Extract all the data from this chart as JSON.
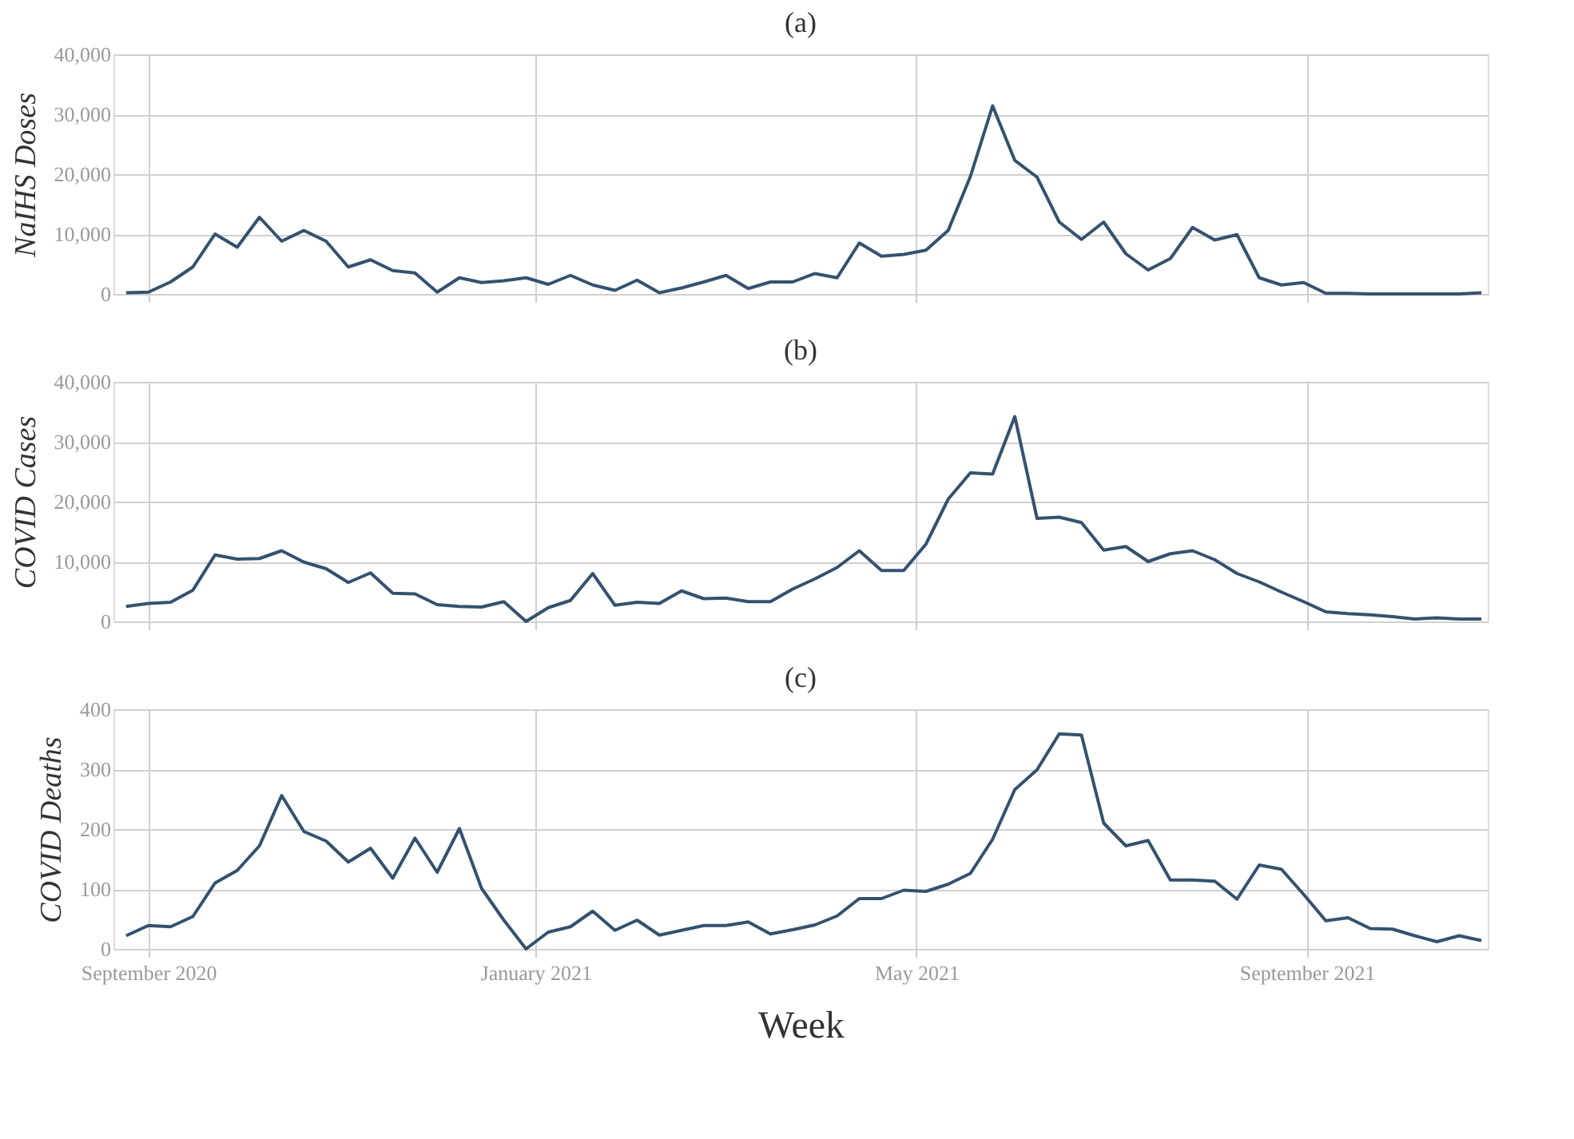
{
  "chart_data": [
    {
      "type": "line",
      "title": "(a)",
      "ylabel": "NaIHS Doses",
      "tick_labels": "y",
      "grid": true,
      "marker": "none",
      "line_style": "solid",
      "x": [
        "2020-08-25",
        "2020-09-01",
        "2020-09-08",
        "2020-09-15",
        "2020-09-22",
        "2020-09-29",
        "2020-10-06",
        "2020-10-13",
        "2020-10-20",
        "2020-10-27",
        "2020-11-03",
        "2020-11-10",
        "2020-11-17",
        "2020-11-24",
        "2020-12-01",
        "2020-12-08",
        "2020-12-15",
        "2020-12-22",
        "2020-12-29",
        "2021-01-05",
        "2021-01-12",
        "2021-01-19",
        "2021-01-26",
        "2021-02-02",
        "2021-02-09",
        "2021-02-16",
        "2021-02-23",
        "2021-03-02",
        "2021-03-09",
        "2021-03-16",
        "2021-03-23",
        "2021-03-30",
        "2021-04-06",
        "2021-04-13",
        "2021-04-20",
        "2021-04-27",
        "2021-05-04",
        "2021-05-11",
        "2021-05-18",
        "2021-05-25",
        "2021-06-01",
        "2021-06-08",
        "2021-06-15",
        "2021-06-22",
        "2021-06-29",
        "2021-07-06",
        "2021-07-13",
        "2021-07-20",
        "2021-07-27",
        "2021-08-03",
        "2021-08-10",
        "2021-08-17",
        "2021-08-24",
        "2021-08-31",
        "2021-09-07",
        "2021-09-14",
        "2021-09-21",
        "2021-09-28",
        "2021-10-05",
        "2021-10-12",
        "2021-10-19",
        "2021-10-26"
      ],
      "xlim": [
        "2020-08-21",
        "2021-10-28"
      ],
      "xticks": [
        {
          "value": "2020-09-01",
          "label": null
        },
        {
          "value": "2021-01-01",
          "label": null
        },
        {
          "value": "2021-05-01",
          "label": null
        },
        {
          "value": "2021-09-01",
          "label": null
        }
      ],
      "ylim": [
        0,
        40000
      ],
      "yticks": [
        0,
        {
          "value": 10000,
          "label": "10,000"
        },
        {
          "value": 20000,
          "label": "20,000"
        },
        {
          "value": 30000,
          "label": "30,000"
        },
        {
          "value": 40000,
          "label": "40,000"
        }
      ],
      "series": [
        {
          "color": "#34526f",
          "values": [
            200,
            300,
            2000,
            4500,
            10000,
            7800,
            12800,
            8800,
            10600,
            8800,
            4500,
            5700,
            3900,
            3500,
            300,
            2700,
            1900,
            2200,
            2700,
            1600,
            3100,
            1500,
            600,
            2300,
            200,
            1000,
            2000,
            3100,
            900,
            2000,
            2000,
            3400,
            2700,
            8500,
            6300,
            6600,
            7300,
            10600,
            19600,
            31400,
            22300,
            19500,
            12000,
            9100,
            12000,
            6700,
            4000,
            5900,
            11100,
            9000,
            9900,
            2700,
            1500,
            1900,
            100,
            100,
            0,
            0,
            0,
            0,
            0,
            200
          ]
        }
      ]
    },
    {
      "type": "line",
      "title": "(b)",
      "ylabel": "COVID Cases",
      "tick_labels": "y",
      "grid": true,
      "marker": "none",
      "line_style": "solid",
      "x": [
        "2020-08-25",
        "2020-09-01",
        "2020-09-08",
        "2020-09-15",
        "2020-09-22",
        "2020-09-29",
        "2020-10-06",
        "2020-10-13",
        "2020-10-20",
        "2020-10-27",
        "2020-11-03",
        "2020-11-10",
        "2020-11-17",
        "2020-11-24",
        "2020-12-01",
        "2020-12-08",
        "2020-12-15",
        "2020-12-22",
        "2020-12-29",
        "2021-01-05",
        "2021-01-12",
        "2021-01-19",
        "2021-01-26",
        "2021-02-02",
        "2021-02-09",
        "2021-02-16",
        "2021-02-23",
        "2021-03-02",
        "2021-03-09",
        "2021-03-16",
        "2021-03-23",
        "2021-03-30",
        "2021-04-06",
        "2021-04-13",
        "2021-04-20",
        "2021-04-27",
        "2021-05-04",
        "2021-05-11",
        "2021-05-18",
        "2021-05-25",
        "2021-06-01",
        "2021-06-08",
        "2021-06-15",
        "2021-06-22",
        "2021-06-29",
        "2021-07-06",
        "2021-07-13",
        "2021-07-20",
        "2021-07-27",
        "2021-08-03",
        "2021-08-10",
        "2021-08-17",
        "2021-08-24",
        "2021-08-31",
        "2021-09-07",
        "2021-09-14",
        "2021-09-21",
        "2021-09-28",
        "2021-10-05",
        "2021-10-12",
        "2021-10-19",
        "2021-10-26"
      ],
      "xlim": [
        "2020-08-21",
        "2021-10-28"
      ],
      "xticks": [
        {
          "value": "2020-09-01",
          "label": null
        },
        {
          "value": "2021-01-01",
          "label": null
        },
        {
          "value": "2021-05-01",
          "label": null
        },
        {
          "value": "2021-09-01",
          "label": null
        }
      ],
      "ylim": [
        0,
        40000
      ],
      "yticks": [
        0,
        {
          "value": 10000,
          "label": "10,000"
        },
        {
          "value": 20000,
          "label": "20,000"
        },
        {
          "value": 30000,
          "label": "30,000"
        },
        {
          "value": 40000,
          "label": "40,000"
        }
      ],
      "series": [
        {
          "color": "#34526f",
          "values": [
            2500,
            3000,
            3200,
            5200,
            11100,
            10400,
            10500,
            11800,
            9900,
            8800,
            6500,
            8100,
            4700,
            4600,
            2800,
            2500,
            2400,
            3300,
            0,
            2300,
            3500,
            8000,
            2700,
            3200,
            3000,
            5100,
            3800,
            3900,
            3300,
            3300,
            5400,
            7100,
            9000,
            11800,
            8500,
            8500,
            12900,
            20400,
            24800,
            24600,
            34200,
            17200,
            17400,
            16500,
            11900,
            12500,
            10000,
            11300,
            11800,
            10300,
            8000,
            6600,
            4900,
            3300,
            1600,
            1300,
            1100,
            800,
            400,
            600,
            400,
            400
          ]
        }
      ]
    },
    {
      "type": "line",
      "title": "(c)",
      "ylabel": "COVID Deaths",
      "xlabel": "Week",
      "grid": true,
      "marker": "none",
      "line_style": "solid",
      "x": [
        "2020-08-25",
        "2020-09-01",
        "2020-09-08",
        "2020-09-15",
        "2020-09-22",
        "2020-09-29",
        "2020-10-06",
        "2020-10-13",
        "2020-10-20",
        "2020-10-27",
        "2020-11-03",
        "2020-11-10",
        "2020-11-17",
        "2020-11-24",
        "2020-12-01",
        "2020-12-08",
        "2020-12-15",
        "2020-12-22",
        "2020-12-29",
        "2021-01-05",
        "2021-01-12",
        "2021-01-19",
        "2021-01-26",
        "2021-02-02",
        "2021-02-09",
        "2021-02-16",
        "2021-02-23",
        "2021-03-02",
        "2021-03-09",
        "2021-03-16",
        "2021-03-23",
        "2021-03-30",
        "2021-04-06",
        "2021-04-13",
        "2021-04-20",
        "2021-04-27",
        "2021-05-04",
        "2021-05-11",
        "2021-05-18",
        "2021-05-25",
        "2021-06-01",
        "2021-06-08",
        "2021-06-15",
        "2021-06-22",
        "2021-06-29",
        "2021-07-06",
        "2021-07-13",
        "2021-07-20",
        "2021-07-27",
        "2021-08-03",
        "2021-08-10",
        "2021-08-17",
        "2021-08-24",
        "2021-08-31",
        "2021-09-07",
        "2021-09-14",
        "2021-09-21",
        "2021-09-28",
        "2021-10-05",
        "2021-10-12",
        "2021-10-19",
        "2021-10-26"
      ],
      "xlim": [
        "2020-08-21",
        "2021-10-28"
      ],
      "xticks": [
        {
          "value": "2020-09-01",
          "label": "September 2020"
        },
        {
          "value": "2021-01-01",
          "label": "January 2021"
        },
        {
          "value": "2021-05-01",
          "label": "May 2021"
        },
        {
          "value": "2021-09-01",
          "label": "September 2021"
        }
      ],
      "ylim": [
        0,
        400
      ],
      "yticks": [
        0,
        100,
        200,
        300,
        400
      ],
      "series": [
        {
          "color": "#34526f",
          "values": [
            22,
            39,
            37,
            54,
            110,
            131,
            172,
            256,
            196,
            180,
            145,
            168,
            118,
            185,
            128,
            201,
            101,
            48,
            0,
            28,
            37,
            63,
            31,
            48,
            23,
            31,
            39,
            39,
            45,
            25,
            32,
            40,
            55,
            84,
            84,
            98,
            96,
            108,
            126,
            183,
            266,
            299,
            359,
            357,
            210,
            172,
            181,
            115,
            115,
            113,
            83,
            140,
            133,
            91,
            47,
            52,
            34,
            33,
            22,
            12,
            22,
            14
          ]
        }
      ]
    }
  ]
}
